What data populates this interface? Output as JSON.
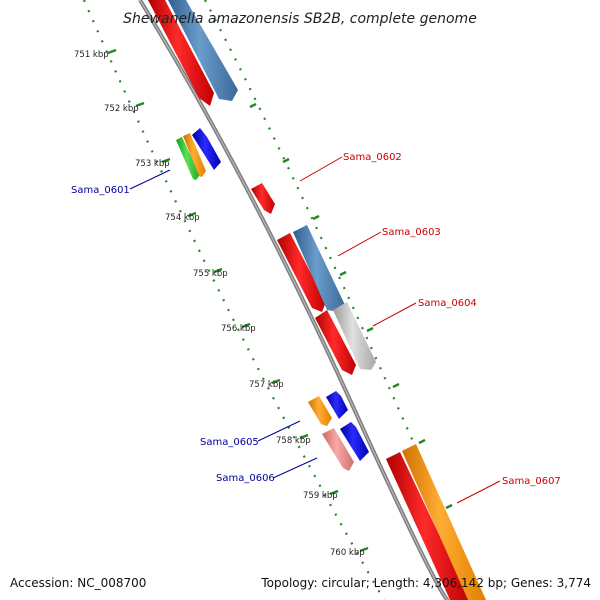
{
  "title": "Shewanella amazonensis SB2B, complete genome",
  "footer": {
    "accession": "Accession: NC_008700",
    "summary": "Topology: circular; Length: 4,306,142 bp; Genes: 3,774"
  },
  "ticks": [
    "751 kbp",
    "752 kbp",
    "753 kbp",
    "754 kbp",
    "755 kbp",
    "756 kbp",
    "757 kbp",
    "758 kbp",
    "759 kbp",
    "760 kbp"
  ],
  "gene_labels": [
    {
      "text": "Sama_0601",
      "color": "#000099"
    },
    {
      "text": "Sama_0602",
      "color": "#cc0000"
    },
    {
      "text": "Sama_0603",
      "color": "#cc0000"
    },
    {
      "text": "Sama_0604",
      "color": "#cc0000"
    },
    {
      "text": "Sama_0605",
      "color": "#000099"
    },
    {
      "text": "Sama_0606",
      "color": "#000099"
    },
    {
      "text": "Sama_0607",
      "color": "#cc0000"
    }
  ],
  "colors": {
    "backbone": "#888888",
    "ring_dots": "#228822",
    "red": "#ee1111",
    "steelblue": "#4a7fb5",
    "blue": "#1111dd",
    "orange": "#ff9900",
    "green": "#33cc33",
    "grey": "#c8c8c8",
    "pink": "#ee8888"
  }
}
